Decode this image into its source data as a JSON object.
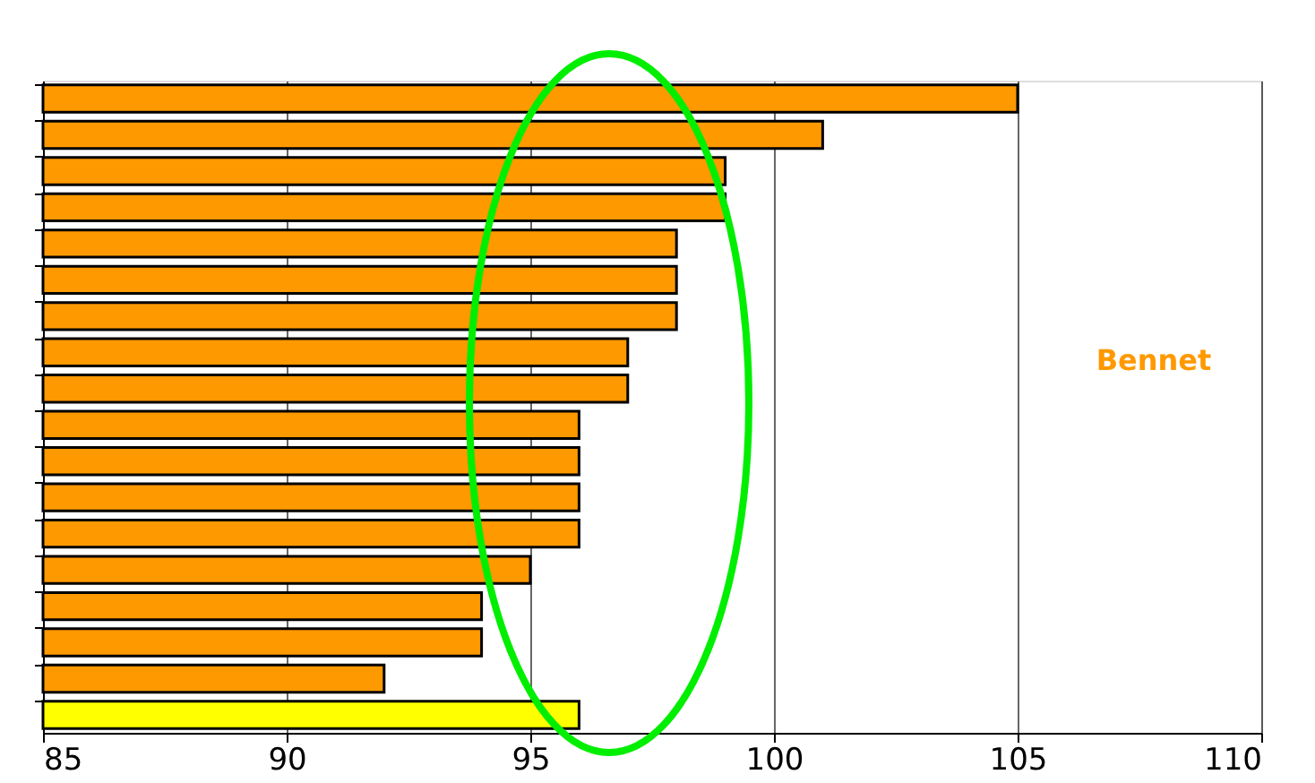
{
  "chart_data": {
    "type": "bar",
    "orientation": "horizontal",
    "categories": [
      null,
      null,
      null,
      null,
      null,
      null,
      null,
      null,
      null,
      null,
      null,
      null,
      null,
      null,
      null,
      null,
      null,
      null
    ],
    "series": [
      {
        "name": "Bennet",
        "color": "#ff9900",
        "values": [
          105,
          101,
          99,
          99,
          98,
          98,
          98,
          97,
          97,
          96,
          96,
          96,
          96,
          95,
          94,
          94,
          92,
          96
        ],
        "colors": [
          "#ff9900",
          "#ff9900",
          "#ff9900",
          "#ff9900",
          "#ff9900",
          "#ff9900",
          "#ff9900",
          "#ff9900",
          "#ff9900",
          "#ff9900",
          "#ff9900",
          "#ff9900",
          "#ff9900",
          "#ff9900",
          "#ff9900",
          "#ff9900",
          "#ff9900",
          "#ffff00"
        ]
      }
    ],
    "xlim": [
      85,
      110
    ],
    "xticks": [
      85,
      90,
      95,
      100,
      105,
      110
    ],
    "grid": "x",
    "legend": "right",
    "tick_labels": "x"
  }
}
